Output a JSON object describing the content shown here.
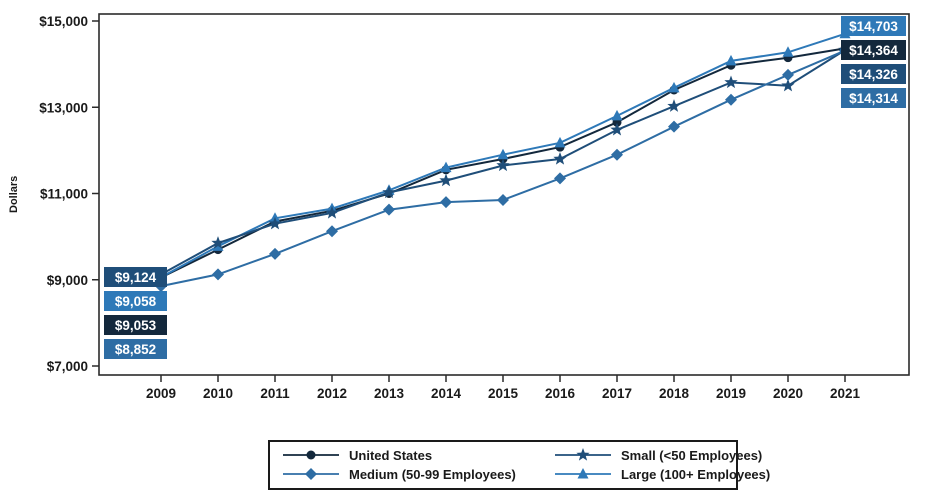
{
  "chart_data": {
    "type": "line",
    "title": "",
    "ylabel": "Dollars",
    "xlabel": "",
    "x": [
      2009,
      2010,
      2011,
      2012,
      2013,
      2014,
      2015,
      2016,
      2017,
      2018,
      2019,
      2020,
      2021
    ],
    "ylim": [
      7000,
      15000
    ],
    "yticks": [
      7000,
      9000,
      11000,
      13000,
      15000
    ],
    "ytick_labels": [
      "$7,000",
      "$9,000",
      "$11,000",
      "$13,000",
      "$15,000"
    ],
    "grid": false,
    "legend_position": "bottom",
    "series": [
      {
        "name": "United States",
        "marker": "circle",
        "color": "#13283C",
        "values": [
          9053,
          9700,
          10350,
          10600,
          11000,
          11550,
          11800,
          12075,
          12650,
          13400,
          13975,
          14150,
          14364
        ],
        "start_label": "$9,053",
        "end_label": "$14,364"
      },
      {
        "name": "Small (<50 Employees)",
        "marker": "star",
        "color": "#1F4E79",
        "values": [
          9124,
          9850,
          10300,
          10550,
          11025,
          11300,
          11650,
          11800,
          12475,
          13025,
          13575,
          13500,
          14326
        ],
        "start_label": "$9,124",
        "end_label": "$14,326"
      },
      {
        "name": "Medium (50-99 Employees)",
        "marker": "diamond",
        "color": "#2E6DA4",
        "values": [
          8852,
          9125,
          9600,
          10125,
          10625,
          10800,
          10850,
          11350,
          11900,
          12550,
          13175,
          13750,
          14314
        ],
        "start_label": "$8,852",
        "end_label": "$14,314"
      },
      {
        "name": "Large (100+ Employees)",
        "marker": "triangle",
        "color": "#2E79B8",
        "values": [
          9058,
          9775,
          10425,
          10650,
          11075,
          11600,
          11900,
          12175,
          12800,
          13450,
          14075,
          14275,
          14703
        ],
        "start_label": "$9,058",
        "end_label": "$14,703"
      }
    ],
    "annotations": {
      "left_value_labels": [
        "$9,124",
        "$9,058",
        "$9,053",
        "$8,852"
      ],
      "right_value_labels": [
        "$14,703",
        "$14,364",
        "$14,326",
        "$14,314"
      ]
    }
  }
}
